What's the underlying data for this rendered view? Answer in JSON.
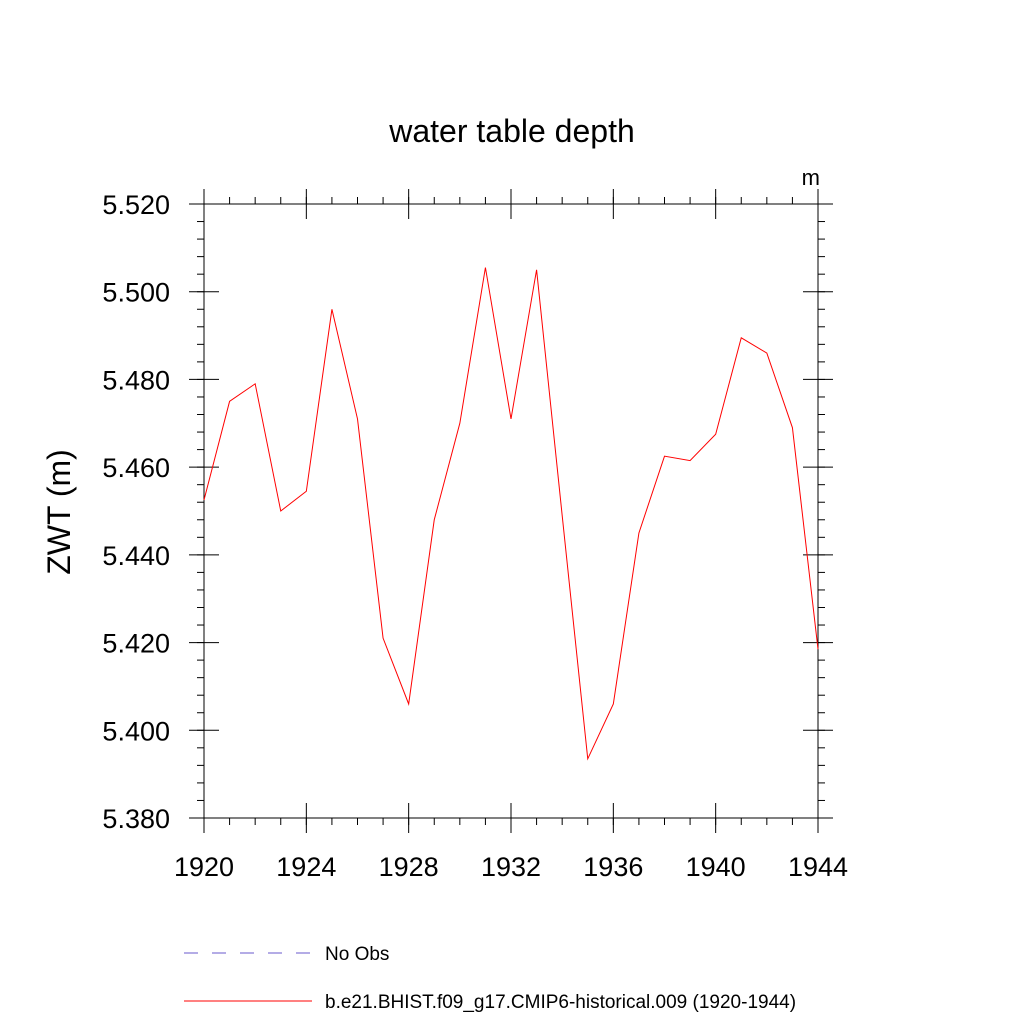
{
  "chart_data": {
    "type": "line",
    "title": "water table depth",
    "units_label": "m",
    "ylabel": "ZWT  (m)",
    "xlabel": "",
    "xlim": [
      1920,
      1944
    ],
    "ylim": [
      5.38,
      5.52
    ],
    "xticks": [
      1920,
      1924,
      1928,
      1932,
      1936,
      1940,
      1944
    ],
    "xtick_labels": [
      "1920",
      "1924",
      "1928",
      "1932",
      "1936",
      "1940",
      "1944"
    ],
    "yticks": [
      5.38,
      5.4,
      5.42,
      5.44,
      5.46,
      5.48,
      5.5,
      5.52
    ],
    "ytick_labels": [
      "5.380",
      "5.400",
      "5.420",
      "5.440",
      "5.460",
      "5.480",
      "5.500",
      "5.520"
    ],
    "x_minor_step": 1,
    "y_minor_step": 0.004,
    "grid": false,
    "series": [
      {
        "name": "b.e21.BHIST.f09_g17.CMIP6-historical.009 (1920-1944)",
        "color": "#ff0000",
        "dash": "solid",
        "x": [
          1920,
          1921,
          1922,
          1923,
          1924,
          1925,
          1926,
          1927,
          1928,
          1929,
          1930,
          1931,
          1932,
          1933,
          1934,
          1935,
          1936,
          1937,
          1938,
          1939,
          1940,
          1941,
          1942,
          1943,
          1944
        ],
        "values": [
          5.4525,
          5.475,
          5.479,
          5.45,
          5.4545,
          5.496,
          5.471,
          5.421,
          5.406,
          5.448,
          5.47,
          5.5055,
          5.471,
          5.505,
          5.449,
          5.3935,
          5.406,
          5.445,
          5.4625,
          5.4615,
          5.4675,
          5.4895,
          5.486,
          5.469,
          5.4185
        ]
      }
    ],
    "legend": {
      "placement": "bottom-left",
      "entries": [
        {
          "label": "No Obs",
          "color": "#6a5acd",
          "dash": "dashed"
        },
        {
          "label": "b.e21.BHIST.f09_g17.CMIP6-historical.009 (1920-1944)",
          "color": "#ff0000",
          "dash": "solid"
        }
      ]
    }
  }
}
